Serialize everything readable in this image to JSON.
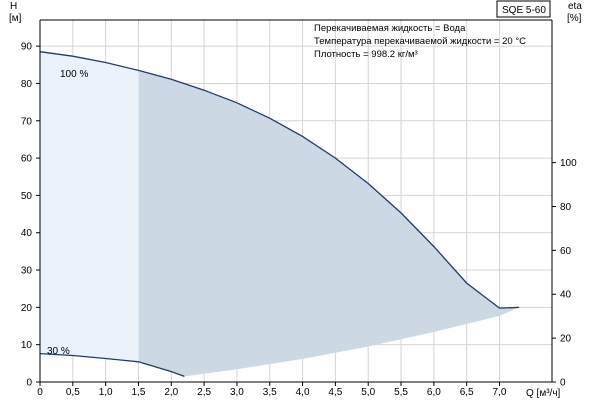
{
  "chart_data": {
    "type": "area",
    "model": "SQE 5-60",
    "info_lines": [
      "Перекачиваемая жидкость = Вода",
      "Температура перекачиваемой жидкости = 20 °C",
      "Плотность = 998.2 кг/м³"
    ],
    "y_left": {
      "label_line1": "H",
      "label_line2": "[м]",
      "ticks": [
        0,
        10,
        20,
        30,
        40,
        50,
        60,
        70,
        80,
        90
      ],
      "range": [
        0,
        97
      ]
    },
    "y_right": {
      "label_line1": "eta",
      "label_line2": "[%]",
      "ticks": [
        0,
        20,
        40,
        60,
        80,
        100
      ],
      "range": [
        0,
        165
      ]
    },
    "x": {
      "label": "Q [м³/ч]",
      "ticks": [
        0,
        0.5,
        1.0,
        1.5,
        2.0,
        2.5,
        3.0,
        3.5,
        4.0,
        4.5,
        5.0,
        5.5,
        6.0,
        6.5,
        7.0
      ],
      "tick_labels": [
        "0",
        "0,5",
        "1,0",
        "1,5",
        "2,0",
        "2,5",
        "3,0",
        "3,5",
        "4,0",
        "4,5",
        "5,0",
        "5,5",
        "6,0",
        "6,5",
        "7,0"
      ],
      "range": [
        0,
        7.8
      ]
    },
    "grid": true,
    "series": [
      {
        "name": "100 %",
        "x": [
          0,
          0.5,
          1.0,
          1.5,
          2.0,
          2.5,
          3.0,
          3.5,
          4.0,
          4.5,
          5.0,
          5.5,
          6.0,
          6.5,
          7.0,
          7.3
        ],
        "y": [
          88.5,
          87.3,
          85.6,
          83.5,
          81.1,
          78.2,
          74.8,
          70.7,
          65.8,
          60.0,
          53.2,
          45.3,
          36.3,
          26.5,
          19.8,
          20.0
        ]
      },
      {
        "name": "30 %",
        "x": [
          0,
          0.5,
          1.0,
          1.5,
          2.0,
          2.2
        ],
        "y": [
          7.6,
          7.1,
          6.3,
          5.4,
          2.8,
          1.5
        ]
      }
    ],
    "lower_boundary": {
      "x": [
        2.2,
        3.0,
        4.0,
        5.0,
        6.0,
        7.0,
        7.3
      ],
      "y": [
        1.5,
        3.4,
        6.2,
        9.5,
        13.4,
        17.7,
        20.0
      ]
    },
    "area_split_x": 1.5,
    "colors": {
      "curve": "#1f3b6e",
      "area_dark": "#ccd8e4",
      "area_light": "#eaf3fb",
      "grid": "#d4d4d4",
      "axis": "#000000"
    }
  }
}
